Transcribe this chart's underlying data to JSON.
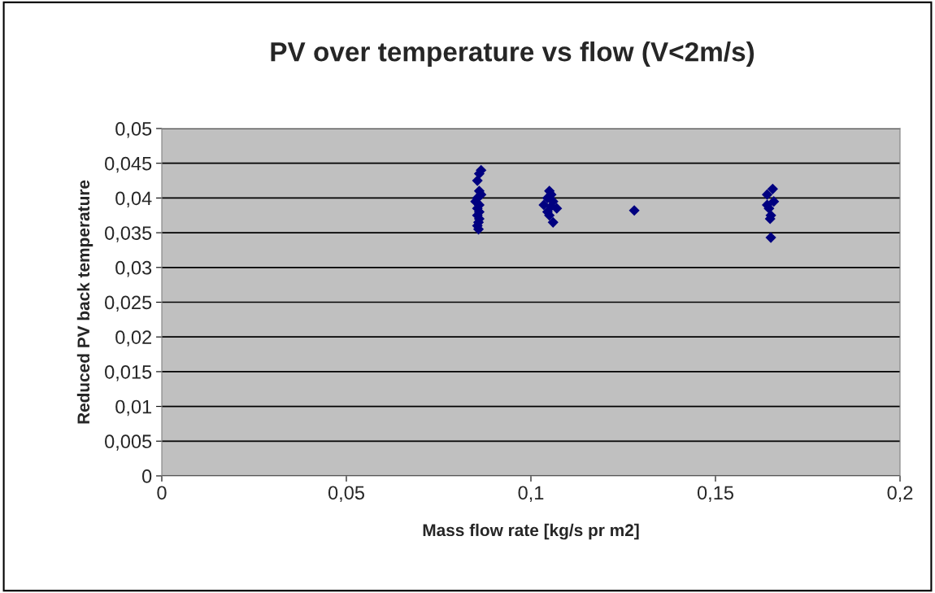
{
  "chart_data": {
    "type": "scatter",
    "title": "PV over temperature vs flow (V<2m/s)",
    "xlabel": "Mass flow rate [kg/s pr m2]",
    "ylabel": "Reduced PV back temperature",
    "series": [
      {
        "color": "#000080",
        "marker": "diamond",
        "x": [
          0.0865,
          0.086,
          0.0855,
          0.086,
          0.0865,
          0.0855,
          0.085,
          0.086,
          0.0855,
          0.086,
          0.0855,
          0.086,
          0.0858,
          0.0855,
          0.0858,
          0.105,
          0.1055,
          0.1045,
          0.106,
          0.1035,
          0.1055,
          0.107,
          0.1045,
          0.105,
          0.106,
          0.128,
          0.1655,
          0.164,
          0.1658,
          0.164,
          0.1645,
          0.165,
          0.1648,
          0.165
        ],
        "values": [
          0.044,
          0.0435,
          0.0425,
          0.041,
          0.0405,
          0.04,
          0.0395,
          0.039,
          0.0385,
          0.038,
          0.0375,
          0.037,
          0.0365,
          0.036,
          0.0355,
          0.041,
          0.0405,
          0.04,
          0.0395,
          0.039,
          0.0388,
          0.0385,
          0.038,
          0.0375,
          0.0365,
          0.0382,
          0.0413,
          0.0405,
          0.0395,
          0.039,
          0.0385,
          0.0375,
          0.037,
          0.0343
        ]
      }
    ],
    "xlim": [
      0,
      0.2
    ],
    "xticks": [
      0,
      {
        "value": 0.05,
        "label": "0,05"
      },
      {
        "value": 0.1,
        "label": "0,1"
      },
      {
        "value": 0.15,
        "label": "0,15"
      },
      {
        "value": 0.2,
        "label": "0,2"
      }
    ],
    "ylim": [
      0,
      0.05
    ],
    "yticks": [
      0,
      {
        "value": 0.005,
        "label": "0,005"
      },
      {
        "value": 0.01,
        "label": "0,01"
      },
      {
        "value": 0.015,
        "label": "0,015"
      },
      {
        "value": 0.02,
        "label": "0,02"
      },
      {
        "value": 0.025,
        "label": "0,025"
      },
      {
        "value": 0.03,
        "label": "0,03"
      },
      {
        "value": 0.035,
        "label": "0,035"
      },
      {
        "value": 0.04,
        "label": "0,04"
      },
      {
        "value": 0.045,
        "label": "0,045"
      },
      {
        "value": 0.05,
        "label": "0,05"
      }
    ],
    "grid": "y",
    "legend": false
  }
}
